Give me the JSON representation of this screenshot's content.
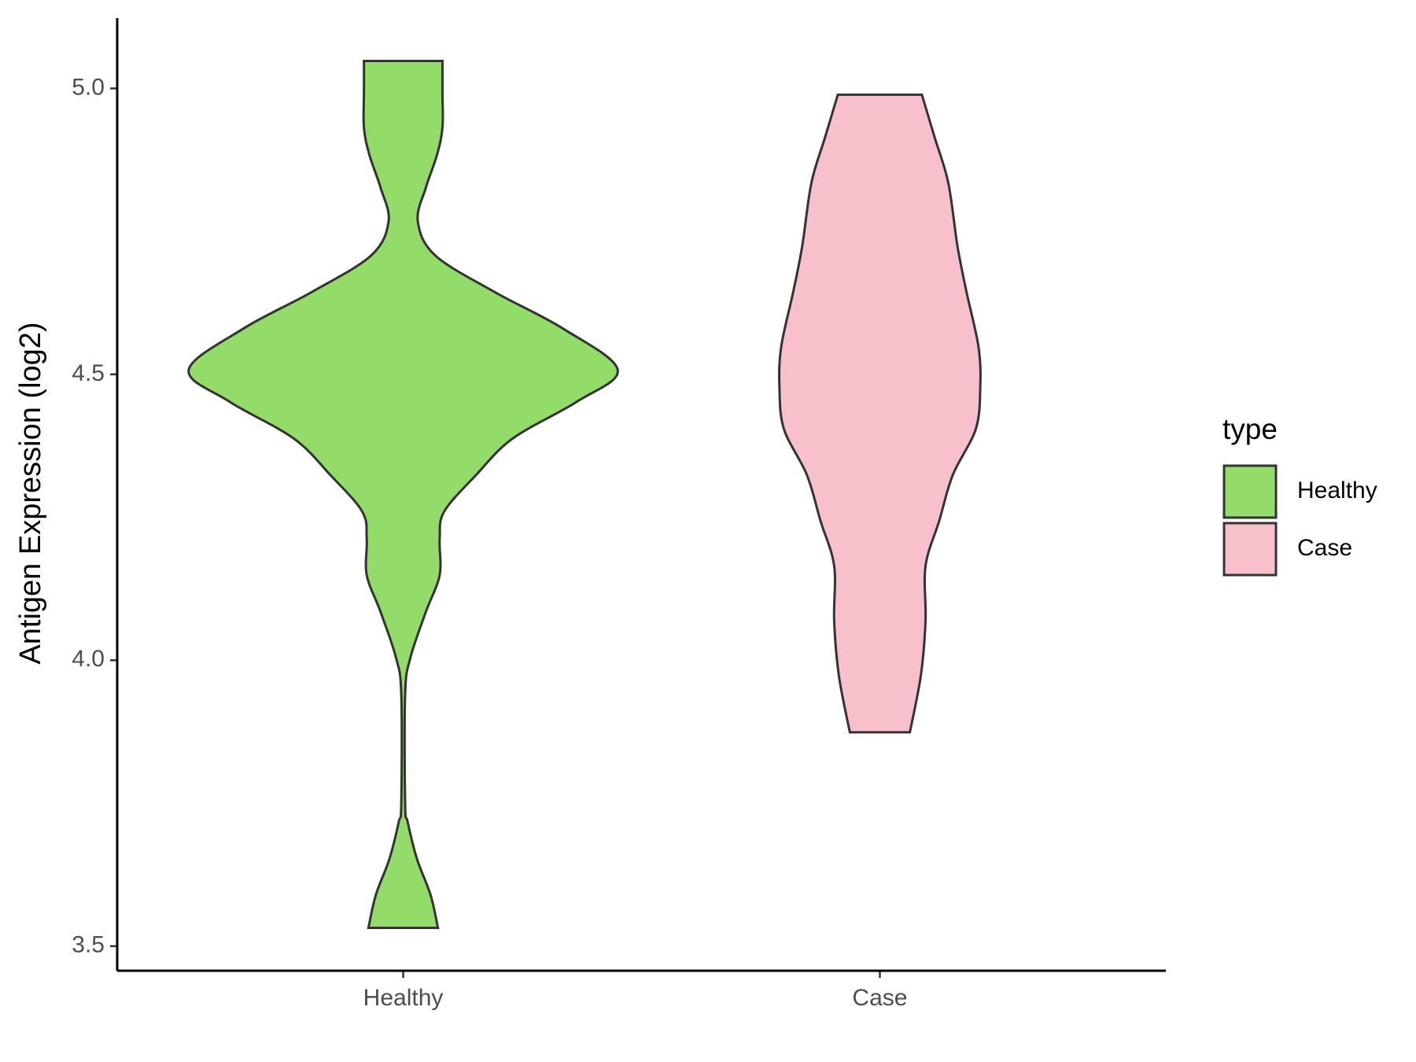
{
  "chart_data": {
    "type": "violin",
    "y_label": "Antigen Expression (log2)",
    "categories": [
      "Healthy",
      "Case"
    ],
    "legend_title": "type",
    "legend_position": "right",
    "ylim": [
      3.457,
      5.123
    ],
    "yticks": [
      {
        "value": 3.5,
        "label": "3.5"
      },
      {
        "value": 4.0,
        "label": "4.0"
      },
      {
        "value": 4.5,
        "label": "4.5"
      },
      {
        "value": 5.0,
        "label": "5.0"
      }
    ],
    "series": [
      {
        "name": "Healthy",
        "color": "#93dc6a",
        "y": [
          5.048,
          4.995,
          4.931,
          4.883,
          4.827,
          4.768,
          4.708,
          4.644,
          4.58,
          4.508,
          4.452,
          4.388,
          4.324,
          4.26,
          4.212,
          4.149,
          4.085,
          4.005,
          3.941,
          3.749,
          3.717,
          3.653,
          3.589,
          3.532
        ],
        "density": [
          0.183,
          0.183,
          0.183,
          0.157,
          0.106,
          0.068,
          0.149,
          0.426,
          0.745,
          1,
          0.809,
          0.511,
          0.34,
          0.191,
          0.17,
          0.17,
          0.106,
          0.034,
          0.009,
          0.009,
          0.021,
          0.064,
          0.128,
          0.162
        ]
      },
      {
        "name": "Case",
        "color": "#f7c0cb",
        "y": [
          4.989,
          4.915,
          4.835,
          4.724,
          4.644,
          4.548,
          4.476,
          4.404,
          4.324,
          4.244,
          4.165,
          4.069,
          3.973,
          3.874
        ],
        "density": [
          0.196,
          0.255,
          0.319,
          0.362,
          0.404,
          0.46,
          0.468,
          0.447,
          0.34,
          0.277,
          0.213,
          0.213,
          0.191,
          0.14
        ]
      }
    ]
  }
}
